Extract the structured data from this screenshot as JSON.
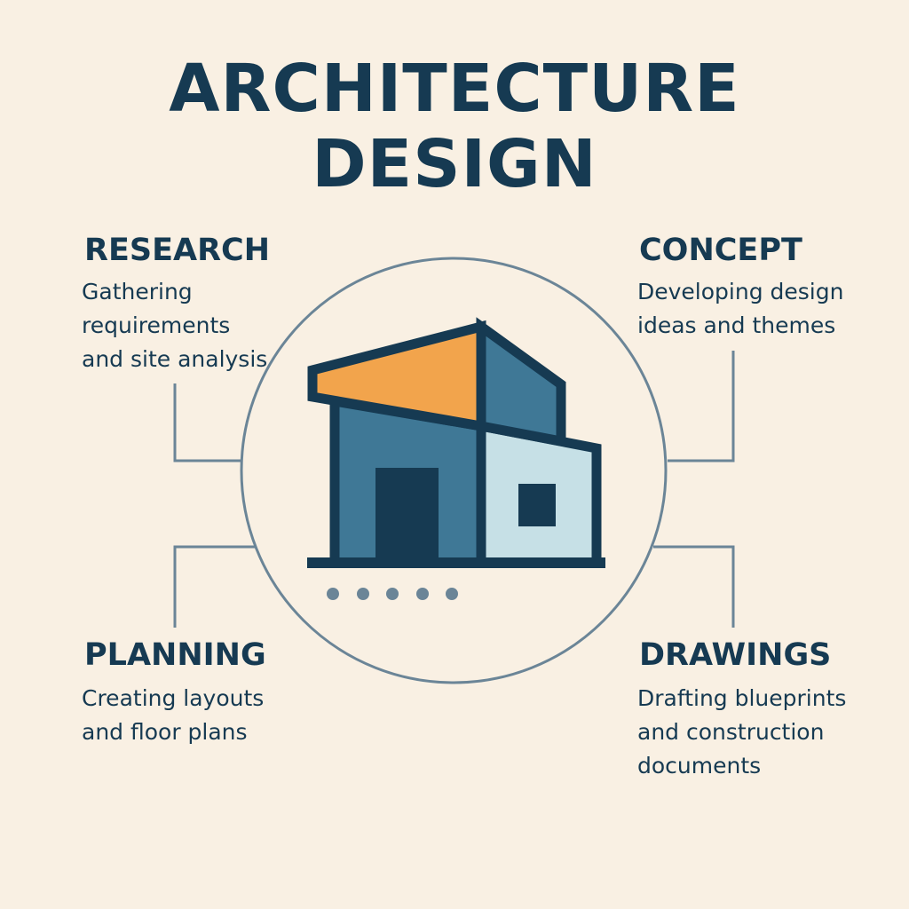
{
  "title": {
    "line1": "ARCHITECTURE",
    "line2": "DESIGN"
  },
  "steps": {
    "research": {
      "heading": "RESEARCH",
      "lines": [
        "Gathering",
        "requirements",
        "and site analysis"
      ]
    },
    "concept": {
      "heading": "CONCEPT",
      "lines": [
        "Developing design",
        "ideas and themes"
      ]
    },
    "planning": {
      "heading": "PLANNING",
      "lines": [
        "Creating layouts",
        "and floor plans"
      ]
    },
    "drawings": {
      "heading": "DRAWINGS",
      "lines": [
        "Drafting blueprints",
        "and construction",
        "documents"
      ]
    }
  },
  "icons": {
    "center": "house-icon"
  },
  "colors": {
    "background": "#f9f0e3",
    "navy": "#163a52",
    "blue": "#3f7896",
    "orange": "#f2a44c",
    "light_blue": "#c6e0e6",
    "connector": "#6b8597"
  }
}
